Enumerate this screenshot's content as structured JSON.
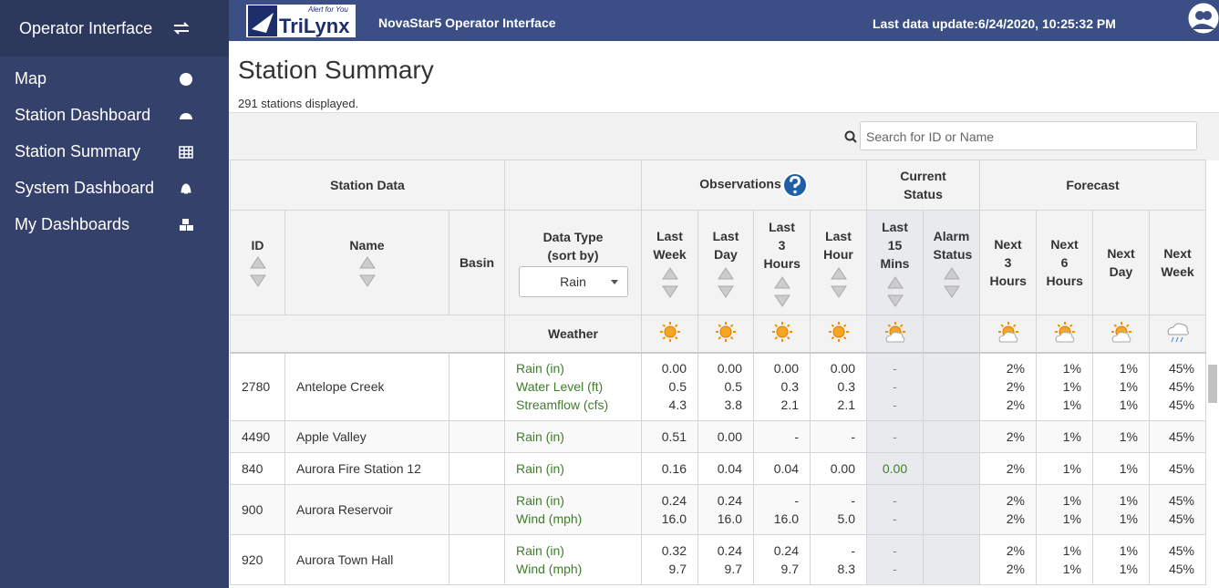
{
  "sidebar": {
    "title": "Operator Interface",
    "items": [
      "Map",
      "Station Dashboard",
      "Station Summary",
      "System Dashboard",
      "My Dashboards"
    ]
  },
  "header": {
    "logo_tagline": "Alert for You",
    "logo_text": "TriLynx",
    "app_name": "NovaStar5 Operator Interface",
    "last_update": "Last data update:6/24/2020, 10:25:32 PM"
  },
  "page": {
    "title": "Station Summary",
    "count": "291 stations displayed.",
    "search_placeholder": "Search for ID or Name"
  },
  "table": {
    "groups": {
      "station_data": "Station Data",
      "observations": "Observations",
      "current_status": "Current Status",
      "forecast": "Forecast"
    },
    "columns": [
      "ID",
      "Name",
      "Basin",
      "Last Week",
      "Last Day",
      "Last 3 Hours",
      "Last Hour",
      "Last 15 Mins",
      "Alarm Status",
      "Next 3 Hours",
      "Next 6 Hours",
      "Next Day",
      "Next Week"
    ],
    "data_type_label": "Data Type",
    "data_type_sort": "(sort by)",
    "data_type_select": "Rain",
    "weather_label": "Weather",
    "rows": [
      {
        "id": "2780",
        "name": "Antelope Creek",
        "lines": [
          {
            "type": "Rain (in)",
            "values": [
              "0.00",
              "0.00",
              "0.00",
              "0.00",
              "-",
              "2%",
              "1%",
              "1%",
              "45%"
            ]
          },
          {
            "type": "Water Level (ft)",
            "values": [
              "0.5",
              "0.5",
              "0.3",
              "0.3",
              "-",
              "2%",
              "1%",
              "1%",
              "45%"
            ]
          },
          {
            "type": "Streamflow (cfs)",
            "values": [
              "4.3",
              "3.8",
              "2.1",
              "2.1",
              "-",
              "2%",
              "1%",
              "1%",
              "45%"
            ]
          }
        ]
      },
      {
        "id": "4490",
        "name": "Apple Valley",
        "lines": [
          {
            "type": "Rain (in)",
            "values": [
              "0.51",
              "0.00",
              "-",
              "-",
              "-",
              "2%",
              "1%",
              "1%",
              "45%"
            ]
          }
        ]
      },
      {
        "id": "840",
        "name": "Aurora Fire Station 12",
        "lines": [
          {
            "type": "Rain (in)",
            "values": [
              "0.16",
              "0.04",
              "0.04",
              "0.00",
              "0.00",
              "2%",
              "1%",
              "1%",
              "45%"
            ]
          }
        ]
      },
      {
        "id": "900",
        "name": "Aurora Reservoir",
        "lines": [
          {
            "type": "Rain (in)",
            "values": [
              "0.24",
              "0.24",
              "-",
              "-",
              "-",
              "2%",
              "1%",
              "1%",
              "45%"
            ]
          },
          {
            "type": "Wind (mph)",
            "values": [
              "16.0",
              "16.0",
              "16.0",
              "5.0",
              "-",
              "2%",
              "1%",
              "1%",
              "45%"
            ]
          }
        ]
      },
      {
        "id": "920",
        "name": "Aurora Town Hall",
        "lines": [
          {
            "type": "Rain (in)",
            "values": [
              "0.32",
              "0.24",
              "0.24",
              "-",
              "-",
              "2%",
              "1%",
              "1%",
              "45%"
            ]
          },
          {
            "type": "Wind (mph)",
            "values": [
              "9.7",
              "9.7",
              "9.7",
              "8.3",
              "-",
              "2%",
              "1%",
              "1%",
              "45%"
            ]
          }
        ]
      }
    ]
  }
}
